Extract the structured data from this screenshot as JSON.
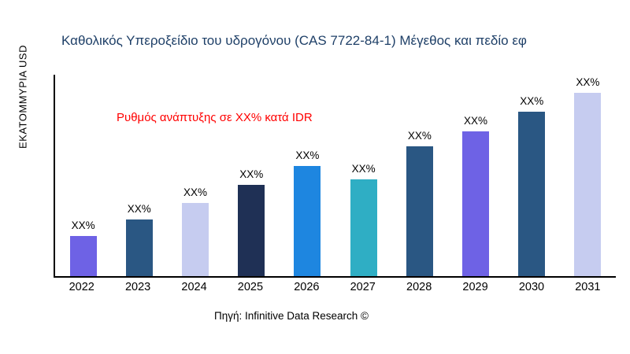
{
  "title": "Καθολικός Υπεροξείδιο του υδρογόνου (CAS 7722-84-1) Μέγεθος και πεδίο εφ",
  "annotation": "Ρυθμός ανάπτυξης σε XX% κατά IDR",
  "source": "Πηγή: Infinitive Data Research ©",
  "colors": {
    "title": "#1F4068",
    "annotation": "#FF0000",
    "axis": "#000000"
  },
  "chart_data": {
    "type": "bar",
    "title": "Καθολικός Υπεροξείδιο του υδρογόνου (CAS 7722-84-1) Μέγεθος και πεδίο εφ",
    "xlabel": "",
    "ylabel": "ΕΚΑΤΟΜΜΥΡΙΑ USD",
    "categories": [
      "2022",
      "2023",
      "2024",
      "2025",
      "2026",
      "2027",
      "2028",
      "2029",
      "2030",
      "2031"
    ],
    "values": [
      22,
      31,
      40,
      50,
      60,
      53,
      71,
      79,
      90,
      100
    ],
    "bar_labels": [
      "XX%",
      "XX%",
      "XX%",
      "XX%",
      "XX%",
      "XX%",
      "XX%",
      "XX%",
      "XX%",
      "XX%"
    ],
    "bar_colors": [
      "#6E62E5",
      "#2A5783",
      "#C6CCF0",
      "#1F3055",
      "#1E86E0",
      "#2FAEC4",
      "#2A5783",
      "#6E62E5",
      "#2A5783",
      "#C6CCF0"
    ],
    "ylim": [
      0,
      110
    ],
    "grid": false,
    "legend": false,
    "annotation": "Ρυθμός ανάπτυξης σε XX% κατά IDR"
  }
}
